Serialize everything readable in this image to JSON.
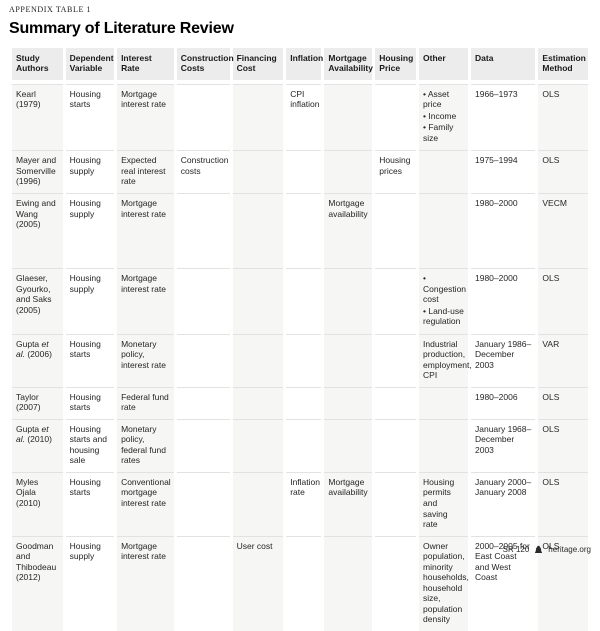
{
  "header": {
    "eyebrow": "APPENDIX TABLE 1",
    "title": "Summary of Literature Review"
  },
  "table": {
    "columns": [
      "Study Authors",
      "Dependent Variable",
      "Interest Rate",
      "Construction Costs",
      "Financing Cost",
      "Inflation",
      "Mortgage Availability",
      "Housing Price",
      "Other",
      "Data",
      "Estimation Method"
    ],
    "rows": [
      [
        "Kearl (1979)",
        "Housing starts",
        "Mortgage interest rate",
        "",
        "",
        "CPI inflation",
        "",
        "",
        [
          "Asset price",
          "Income",
          "Family size"
        ],
        "1966–1973",
        "OLS"
      ],
      [
        "Mayer and Somerville (1996)",
        "Housing supply",
        "Expected real interest rate",
        "Construction costs",
        "",
        "",
        "",
        "Housing prices",
        "",
        "1975–1994",
        "OLS"
      ],
      [
        "Ewing and Wang (2005)",
        "Housing supply",
        "Mortgage interest rate",
        "",
        "",
        "",
        "Mortgage availability",
        "",
        "",
        "1980–2000",
        "VECM"
      ],
      [
        "Glaeser, Gyourko, and Saks (2005)",
        "Housing supply",
        "Mortgage interest rate",
        "",
        "",
        "",
        "",
        "",
        [
          "Congestion cost",
          "Land-use regulation"
        ],
        "1980–2000",
        "OLS"
      ],
      [
        "Gupta et al. (2006)",
        "Housing starts",
        "Monetary policy, interest rate",
        "",
        "",
        "",
        "",
        "",
        "Industrial production, employment, CPI",
        "January 1986–December 2003",
        "VAR"
      ],
      [
        "Taylor (2007)",
        "Housing starts",
        "Federal fund rate",
        "",
        "",
        "",
        "",
        "",
        "",
        "1980–2006",
        "OLS"
      ],
      [
        "Gupta et al. (2010)",
        "Housing starts and housing sale",
        "Monetary policy, federal fund rates",
        "",
        "",
        "",
        "",
        "",
        "",
        "January 1968–December 2003",
        "OLS"
      ],
      [
        "Myles Ojala (2010)",
        "Housing starts",
        "Conventional mortgage interest rate",
        "",
        "",
        "Inflation rate",
        "Mortgage availability",
        "",
        "Housing permits and saving rate",
        "January 2000–January 2008",
        "OLS"
      ],
      [
        "Goodman and Thibodeau (2012)",
        "Housing supply",
        "Mortgage interest rate",
        "",
        "User cost",
        "",
        "",
        "",
        "Owner population, minority households, household size, population density",
        "2000–2005 for East Coast and West Coast",
        "OLS"
      ]
    ]
  },
  "footer": {
    "report_number": "SR 120",
    "logo_icon": "heritage-liberty-bell",
    "site": "heritage.org"
  },
  "colors": {
    "header_cell_bg": "#ececec",
    "striped_col_bg": "#f6f6f5",
    "row_rule": "#e2e2e2",
    "text": "#262626"
  }
}
